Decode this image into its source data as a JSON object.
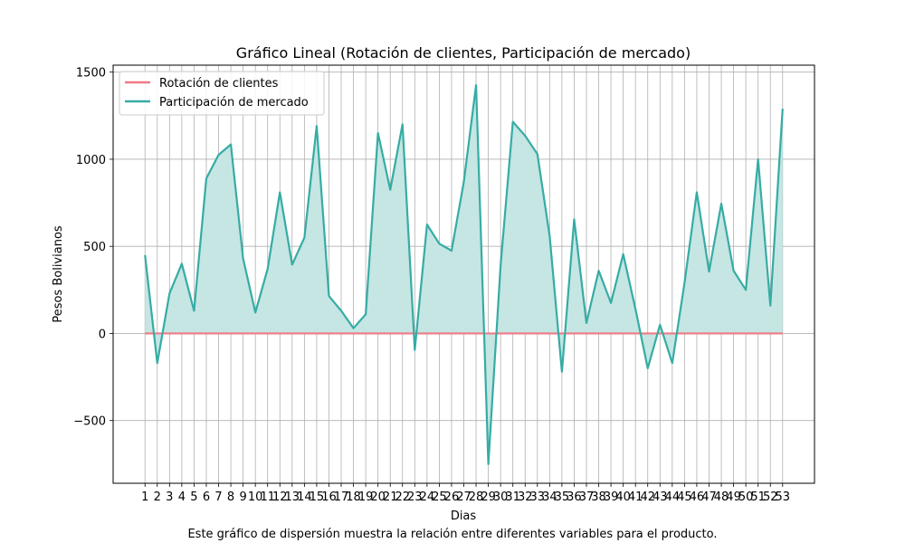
{
  "caption": "Este gráfico de dispersión muestra la relación entre diferentes variables para el producto.",
  "chart_data": {
    "type": "area",
    "title": "Gráfico Lineal (Rotación de clientes, Participación de mercado)",
    "xlabel": "Dias",
    "ylabel": "Pesos Bolivianos",
    "x": [
      1,
      2,
      3,
      4,
      5,
      6,
      7,
      8,
      9,
      10,
      11,
      12,
      13,
      14,
      15,
      16,
      17,
      18,
      19,
      20,
      21,
      22,
      23,
      24,
      25,
      26,
      27,
      28,
      29,
      30,
      31,
      32,
      33,
      34,
      35,
      36,
      37,
      38,
      39,
      40,
      41,
      42,
      43,
      44,
      45,
      46,
      47,
      48,
      49,
      50,
      51,
      52,
      53
    ],
    "xlim": [
      -1.6,
      55.6
    ],
    "ylim": [
      -860,
      1540
    ],
    "yticks": [
      -500,
      0,
      500,
      1000,
      1500
    ],
    "ytick_labels": [
      "−500",
      "0",
      "500",
      "1000",
      "1500"
    ],
    "grid": true,
    "legend_position": "upper-left",
    "series": [
      {
        "name": "Rotación de clientes",
        "color": "#f07a84",
        "fill": false,
        "values": [
          0,
          0,
          0,
          0,
          0,
          0,
          0,
          0,
          0,
          0,
          0,
          0,
          0,
          0,
          0,
          0,
          0,
          0,
          0,
          0,
          0,
          0,
          0,
          0,
          0,
          0,
          0,
          0,
          0,
          0,
          0,
          0,
          0,
          0,
          0,
          0,
          0,
          0,
          0,
          0,
          0,
          0,
          0,
          0,
          0,
          0,
          0,
          0,
          0,
          0,
          0,
          0,
          0
        ]
      },
      {
        "name": "Participación de mercado",
        "color": "#36aca4",
        "fill": true,
        "fill_color": "#c5e6e3",
        "values": [
          450,
          -170,
          230,
          400,
          130,
          890,
          1025,
          1085,
          430,
          120,
          370,
          810,
          395,
          550,
          1190,
          215,
          130,
          30,
          110,
          1150,
          825,
          1200,
          -95,
          625,
          515,
          475,
          870,
          1425,
          -750,
          390,
          1215,
          1135,
          1030,
          560,
          -220,
          655,
          60,
          360,
          175,
          455,
          140,
          -200,
          50,
          -170,
          290,
          810,
          355,
          745,
          360,
          250,
          1000,
          160,
          1290
        ]
      }
    ]
  }
}
